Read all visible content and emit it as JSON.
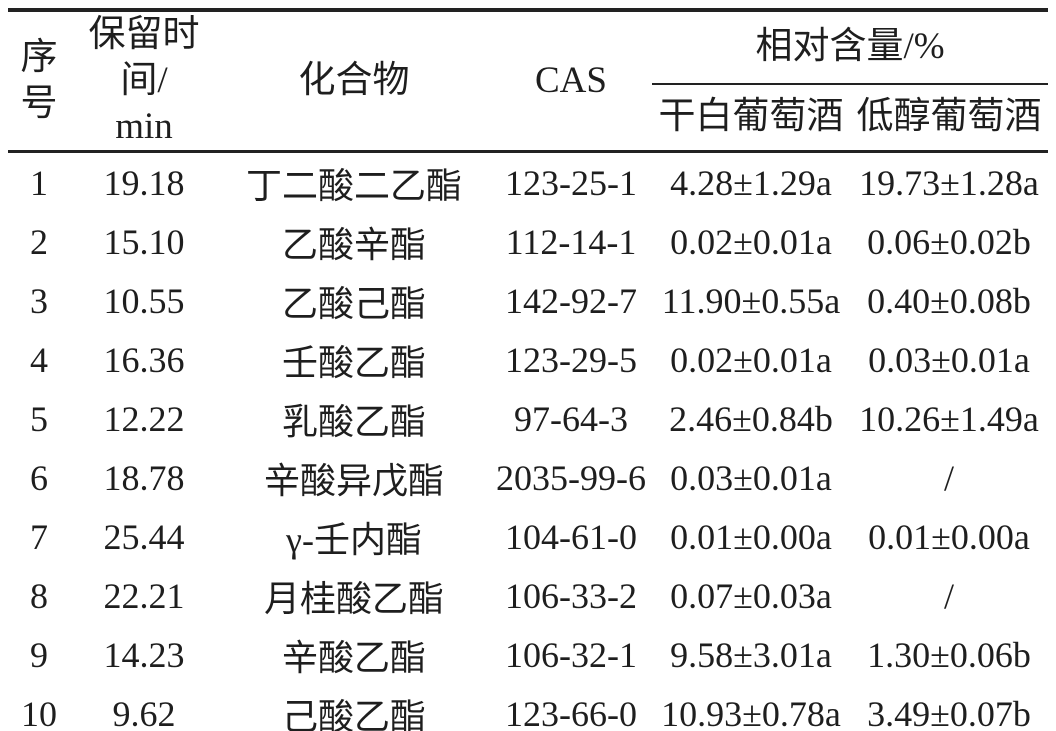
{
  "table": {
    "title_hint": "esters relative content in wines",
    "colors": {
      "text": "#1e1e1e",
      "rule": "#222222",
      "background": "#ffffff"
    },
    "header": {
      "no": {
        "line1": "序",
        "line2": "号"
      },
      "retention": {
        "line1": "保留时间/",
        "line2": "min"
      },
      "compound": "化合物",
      "cas": "CAS",
      "group": "相对含量/%",
      "dry": "干白葡萄酒",
      "low": "低醇葡萄酒"
    },
    "rows": [
      {
        "no": "1",
        "rt": "19.18",
        "compound": "丁二酸二乙酯",
        "cas": "123-25-1",
        "dry": "4.28±1.29a",
        "low": "19.73±1.28a"
      },
      {
        "no": "2",
        "rt": "15.10",
        "compound": "乙酸辛酯",
        "cas": "112-14-1",
        "dry": "0.02±0.01a",
        "low": "0.06±0.02b"
      },
      {
        "no": "3",
        "rt": "10.55",
        "compound": "乙酸己酯",
        "cas": "142-92-7",
        "dry": "11.90±0.55a",
        "low": "0.40±0.08b"
      },
      {
        "no": "4",
        "rt": "16.36",
        "compound": "壬酸乙酯",
        "cas": "123-29-5",
        "dry": "0.02±0.01a",
        "low": "0.03±0.01a"
      },
      {
        "no": "5",
        "rt": "12.22",
        "compound": "乳酸乙酯",
        "cas": "97-64-3",
        "dry": "2.46±0.84b",
        "low": "10.26±1.49a"
      },
      {
        "no": "6",
        "rt": "18.78",
        "compound": "辛酸异戊酯",
        "cas": "2035-99-6",
        "dry": "0.03±0.01a",
        "low": "/"
      },
      {
        "no": "7",
        "rt": "25.44",
        "compound": "γ-壬内酯",
        "cas": "104-61-0",
        "dry": "0.01±0.00a",
        "low": "0.01±0.00a"
      },
      {
        "no": "8",
        "rt": "22.21",
        "compound": "月桂酸乙酯",
        "cas": "106-33-2",
        "dry": "0.07±0.03a",
        "low": "/"
      },
      {
        "no": "9",
        "rt": "14.23",
        "compound": "辛酸乙酯",
        "cas": "106-32-1",
        "dry": "9.58±3.01a",
        "low": "1.30±0.06b"
      },
      {
        "no": "10",
        "rt": "9.62",
        "compound": "己酸乙酯",
        "cas": "123-66-0",
        "dry": "10.93±0.78a",
        "low": "3.49±0.07b"
      }
    ]
  }
}
